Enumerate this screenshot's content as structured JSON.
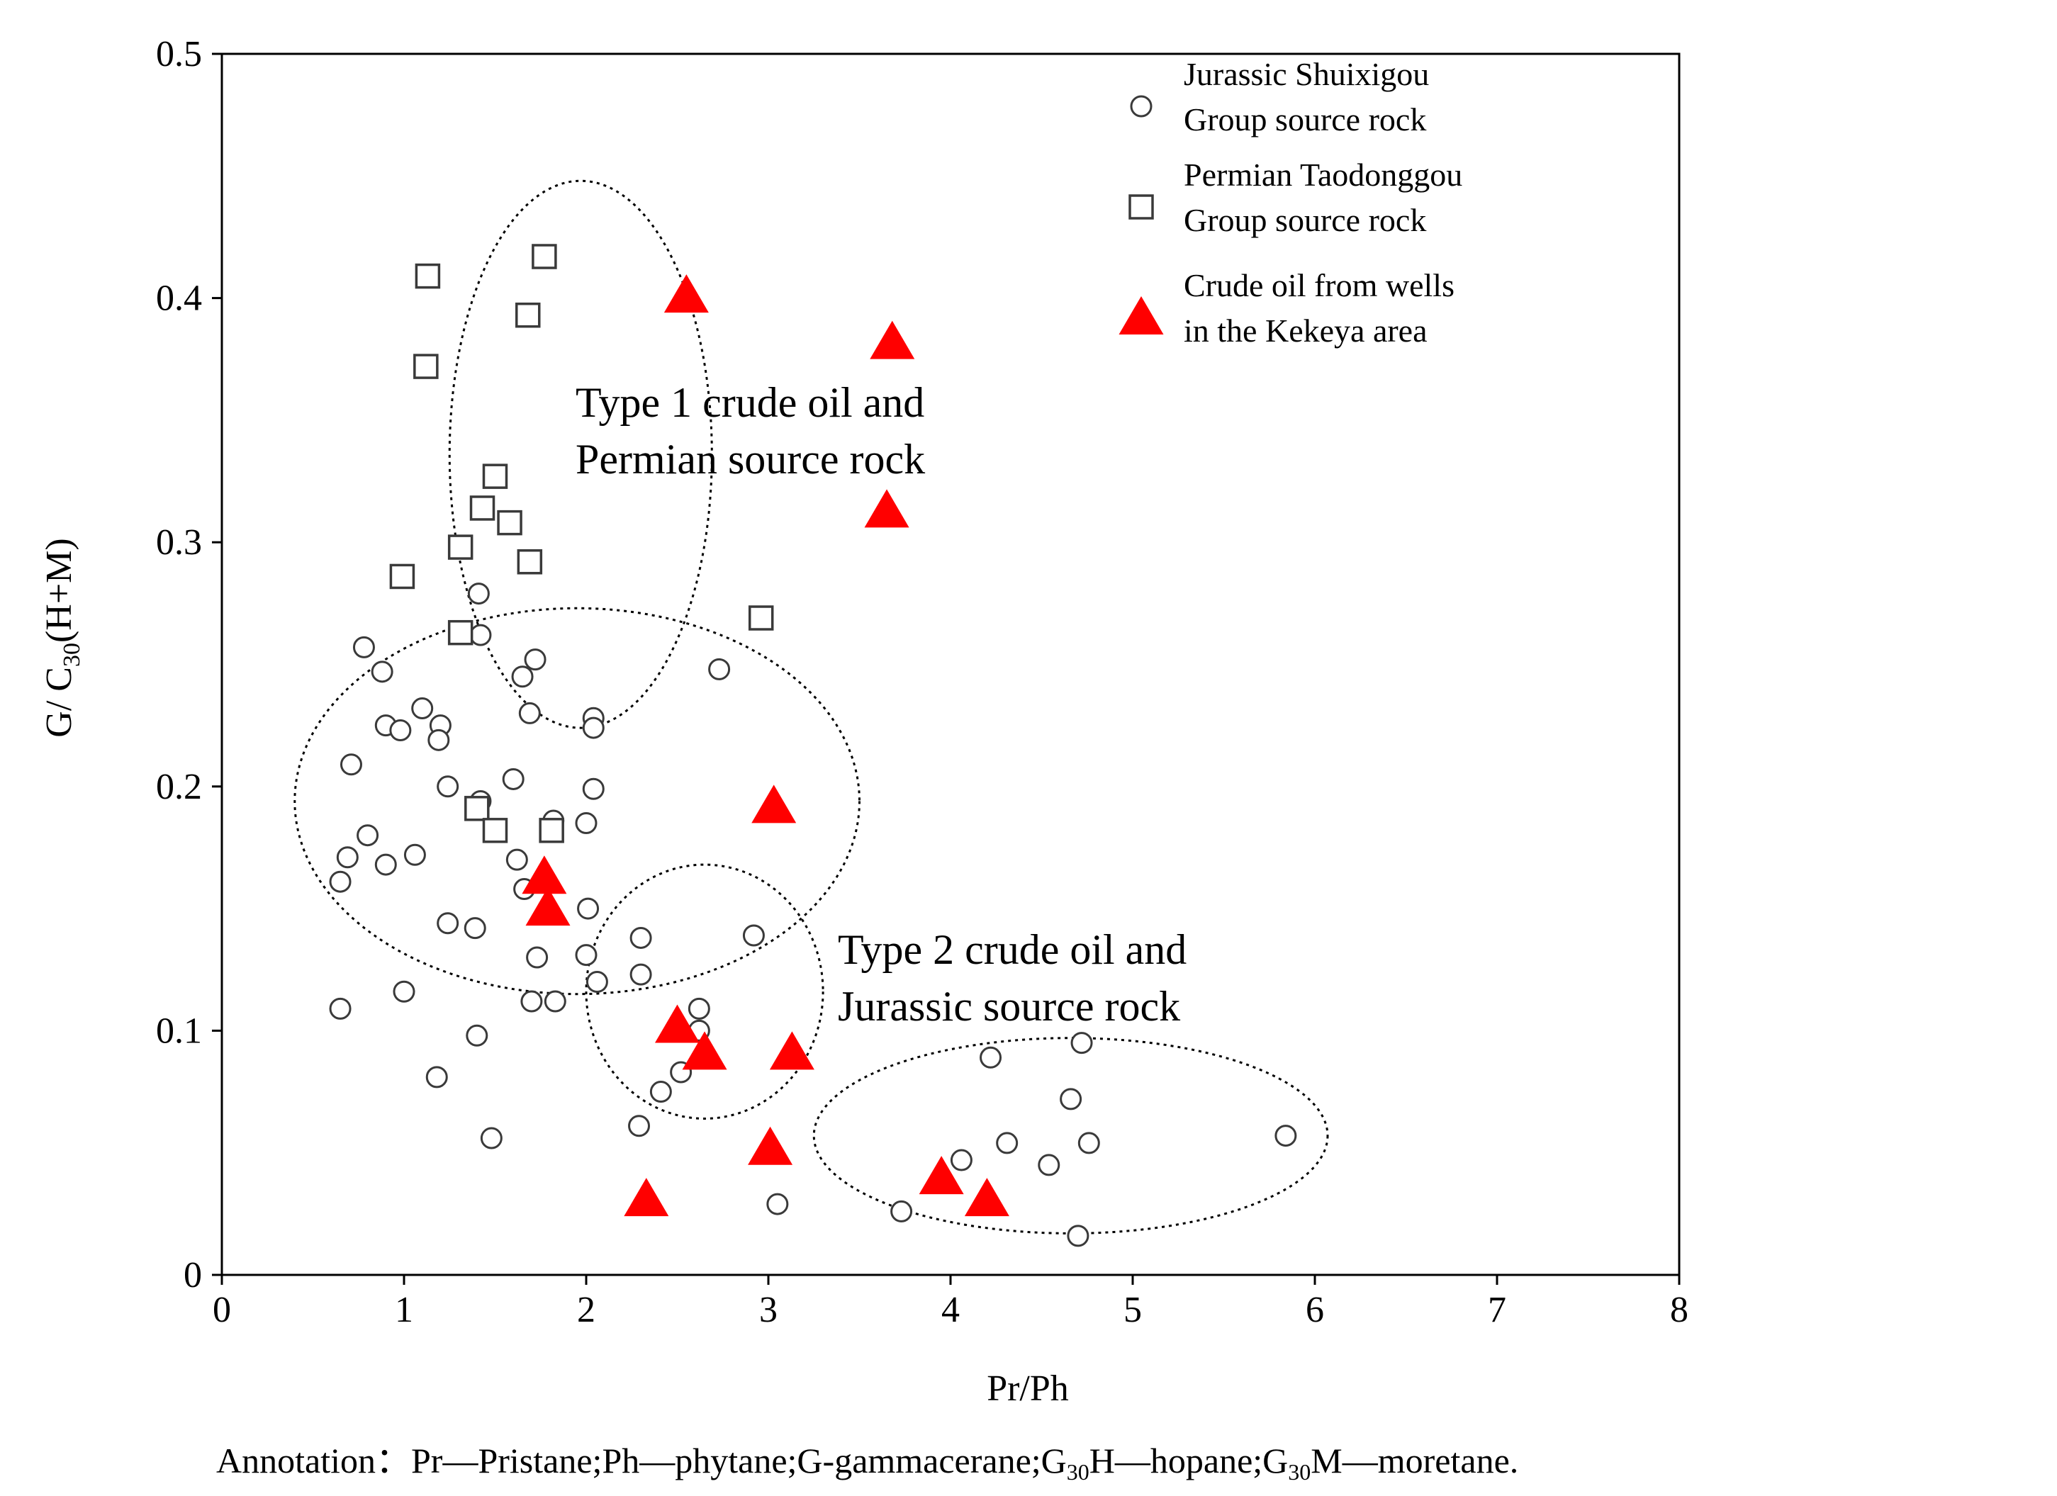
{
  "chart_data": {
    "type": "scatter",
    "xlabel": "Pr/Ph",
    "ylabel_main": "G/ C",
    "ylabel_sub": "30",
    "ylabel_tail": "(H+M)",
    "xlim": [
      0,
      8
    ],
    "ylim": [
      0,
      0.5
    ],
    "x_ticks": [
      "0",
      "1",
      "2",
      "3",
      "4",
      "5",
      "6",
      "7",
      "8"
    ],
    "y_ticks": [
      "0",
      "0.1",
      "0.2",
      "0.3",
      "0.4",
      "0.5"
    ],
    "legend": [
      {
        "marker": "circle",
        "line1": "Jurassic Shuixigou",
        "line2": "Group source rock"
      },
      {
        "marker": "square",
        "line1": "Permian Taodonggou",
        "line2": "Group source rock"
      },
      {
        "marker": "triangle",
        "line1": "Crude oil from wells",
        "line2": "in the Kekeya area"
      }
    ],
    "annotations": [
      {
        "line1": "Type 1 crude oil and",
        "line2": "Permian source rock",
        "x": 2.0,
        "y": 0.35,
        "anchor": "start-ref"
      },
      {
        "line1": "Type 2 crude oil and",
        "line2": "Jurassic source rock",
        "x": 3.35,
        "y": 0.125,
        "anchor": "start-ref"
      }
    ],
    "ellipses": [
      {
        "name": "type1-ellipse",
        "cx": 1.97,
        "cy": 0.336,
        "rx": 0.72,
        "ry": 0.112
      },
      {
        "name": "large-jurassic-ellipse",
        "cx": 1.95,
        "cy": 0.194,
        "rx": 1.55,
        "ry": 0.079
      },
      {
        "name": "type2-ellipse",
        "cx": 2.65,
        "cy": 0.116,
        "rx": 0.65,
        "ry": 0.052
      },
      {
        "name": "high-pr-ph-ellipse",
        "cx": 4.66,
        "cy": 0.057,
        "rx": 1.41,
        "ry": 0.04
      }
    ],
    "series": [
      {
        "name": "Jurassic Shuixigou Group source rock",
        "marker": "circle",
        "points": [
          [
            0.78,
            0.257
          ],
          [
            0.88,
            0.247
          ],
          [
            0.71,
            0.209
          ],
          [
            0.9,
            0.225
          ],
          [
            0.98,
            0.223
          ],
          [
            1.1,
            0.232
          ],
          [
            1.2,
            0.225
          ],
          [
            1.19,
            0.219
          ],
          [
            1.24,
            0.2
          ],
          [
            1.42,
            0.194
          ],
          [
            1.6,
            0.203
          ],
          [
            1.41,
            0.279
          ],
          [
            1.42,
            0.262
          ],
          [
            1.72,
            0.252
          ],
          [
            1.65,
            0.245
          ],
          [
            1.69,
            0.23
          ],
          [
            2.04,
            0.228
          ],
          [
            2.04,
            0.224
          ],
          [
            2.73,
            0.248
          ],
          [
            2.04,
            0.199
          ],
          [
            2.0,
            0.185
          ],
          [
            1.82,
            0.186
          ],
          [
            0.8,
            0.18
          ],
          [
            0.69,
            0.171
          ],
          [
            0.65,
            0.161
          ],
          [
            0.9,
            0.168
          ],
          [
            1.06,
            0.172
          ],
          [
            1.62,
            0.17
          ],
          [
            1.66,
            0.158
          ],
          [
            2.01,
            0.15
          ],
          [
            1.24,
            0.144
          ],
          [
            1.39,
            0.142
          ],
          [
            1.73,
            0.13
          ],
          [
            2.3,
            0.138
          ],
          [
            2.0,
            0.131
          ],
          [
            2.92,
            0.139
          ],
          [
            2.3,
            0.123
          ],
          [
            2.06,
            0.12
          ],
          [
            0.65,
            0.109
          ],
          [
            1.0,
            0.116
          ],
          [
            1.7,
            0.112
          ],
          [
            1.83,
            0.112
          ],
          [
            2.62,
            0.109
          ],
          [
            2.62,
            0.1
          ],
          [
            1.4,
            0.098
          ],
          [
            1.18,
            0.081
          ],
          [
            2.52,
            0.083
          ],
          [
            2.41,
            0.075
          ],
          [
            1.48,
            0.056
          ],
          [
            2.29,
            0.061
          ],
          [
            3.05,
            0.029
          ],
          [
            3.73,
            0.026
          ],
          [
            4.06,
            0.047
          ],
          [
            4.22,
            0.089
          ],
          [
            4.31,
            0.054
          ],
          [
            4.54,
            0.045
          ],
          [
            4.66,
            0.072
          ],
          [
            4.72,
            0.095
          ],
          [
            4.76,
            0.054
          ],
          [
            4.7,
            0.016
          ],
          [
            5.84,
            0.057
          ]
        ]
      },
      {
        "name": "Permian Taodonggou Group source rock",
        "marker": "square",
        "points": [
          [
            1.13,
            0.409
          ],
          [
            1.77,
            0.417
          ],
          [
            1.12,
            0.372
          ],
          [
            1.68,
            0.393
          ],
          [
            1.5,
            0.327
          ],
          [
            1.43,
            0.314
          ],
          [
            1.58,
            0.308
          ],
          [
            1.31,
            0.298
          ],
          [
            0.99,
            0.286
          ],
          [
            1.69,
            0.292
          ],
          [
            1.31,
            0.263
          ],
          [
            2.96,
            0.269
          ],
          [
            1.4,
            0.191
          ],
          [
            1.5,
            0.182
          ],
          [
            1.81,
            0.182
          ]
        ]
      },
      {
        "name": "Crude oil from wells in the Kekeya area",
        "marker": "triangle",
        "points": [
          [
            2.55,
            0.401
          ],
          [
            3.68,
            0.382
          ],
          [
            3.65,
            0.313
          ],
          [
            3.03,
            0.192
          ],
          [
            1.77,
            0.163
          ],
          [
            1.79,
            0.15
          ],
          [
            2.5,
            0.102
          ],
          [
            2.65,
            0.091
          ],
          [
            3.13,
            0.091
          ],
          [
            3.01,
            0.052
          ],
          [
            2.33,
            0.031
          ],
          [
            3.95,
            0.04
          ],
          [
            4.2,
            0.031
          ]
        ]
      }
    ]
  },
  "footnote": {
    "label": "Annotation",
    "separator": "：",
    "pr": "Pr",
    "pr_def": "Pristane;",
    "ph": "Ph",
    "ph_def": "phytane;",
    "g": "G",
    "g_def": "gammacerane;",
    "h_base": "G",
    "h_sub": "30",
    "h_tail": "H",
    "h_def": "hopane;",
    "m_base": "G",
    "m_sub": "30",
    "m_tail": "M",
    "m_def": "moretane."
  },
  "colors": {
    "axis": "#000000",
    "marker_open": "#3a3a3a",
    "triangle": "#ff0000",
    "background": "#ffffff"
  }
}
